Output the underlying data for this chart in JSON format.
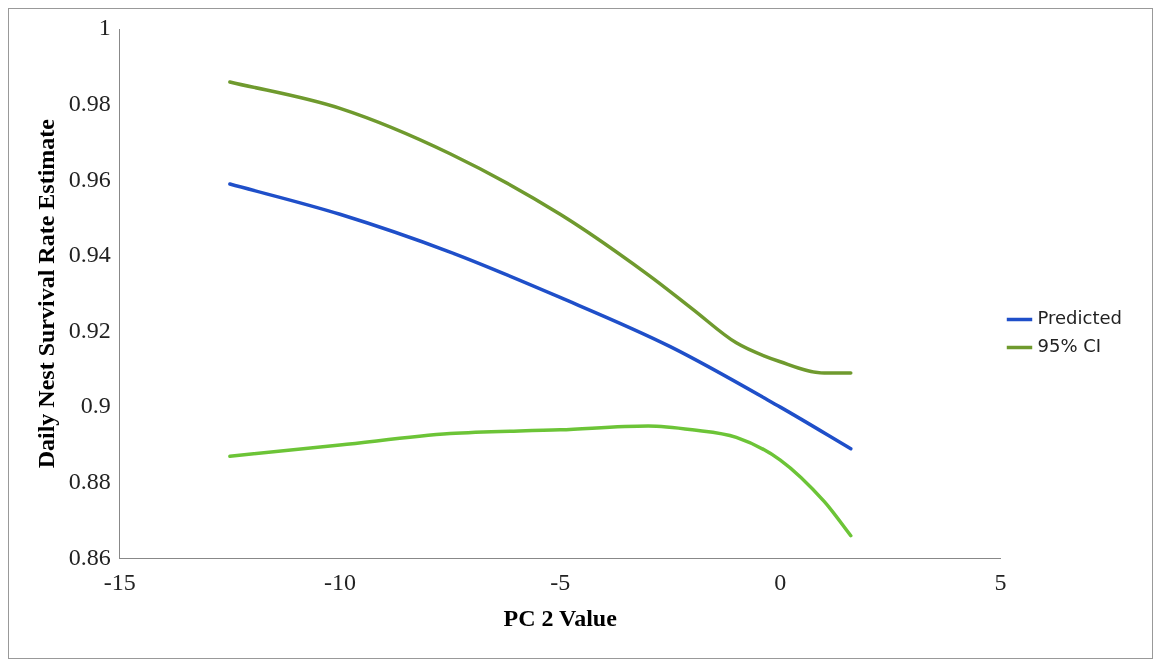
{
  "chart_data": {
    "type": "line",
    "xlabel": "PC 2 Value",
    "ylabel": "Daily Nest Survival Rate Estimate",
    "xlim": [
      -15,
      5
    ],
    "xticks": [
      -15,
      -10,
      -5,
      0,
      5
    ],
    "ylim": [
      0.86,
      1
    ],
    "yticks": [
      0.86,
      0.88,
      0.9,
      0.92,
      0.94,
      0.96,
      0.98,
      1
    ],
    "grid": false,
    "legend": "right",
    "marker": "none",
    "line_style": "solid",
    "series": [
      {
        "name": "Predicted",
        "color": "#1f4fc9",
        "x": [
          -12.5,
          -10,
          -7.5,
          -5,
          -2.5,
          0,
          1.6
        ],
        "values": [
          0.959,
          0.951,
          0.941,
          0.929,
          0.916,
          0.9,
          0.889
        ]
      },
      {
        "name": "95% CI",
        "color": "#6f9a2e",
        "x": [
          -12.5,
          -10,
          -7.5,
          -5,
          -3,
          -2,
          -1,
          0,
          1,
          1.6
        ],
        "values": [
          0.986,
          0.979,
          0.967,
          0.951,
          0.935,
          0.926,
          0.917,
          0.912,
          0.909,
          0.909
        ]
      },
      {
        "color": "#6cc437",
        "x": [
          -12.5,
          -10,
          -7.5,
          -5,
          -3,
          -2,
          -1,
          0,
          1,
          1.6
        ],
        "values": [
          0.887,
          0.89,
          0.893,
          0.894,
          0.895,
          0.894,
          0.892,
          0.886,
          0.875,
          0.866
        ]
      }
    ]
  }
}
